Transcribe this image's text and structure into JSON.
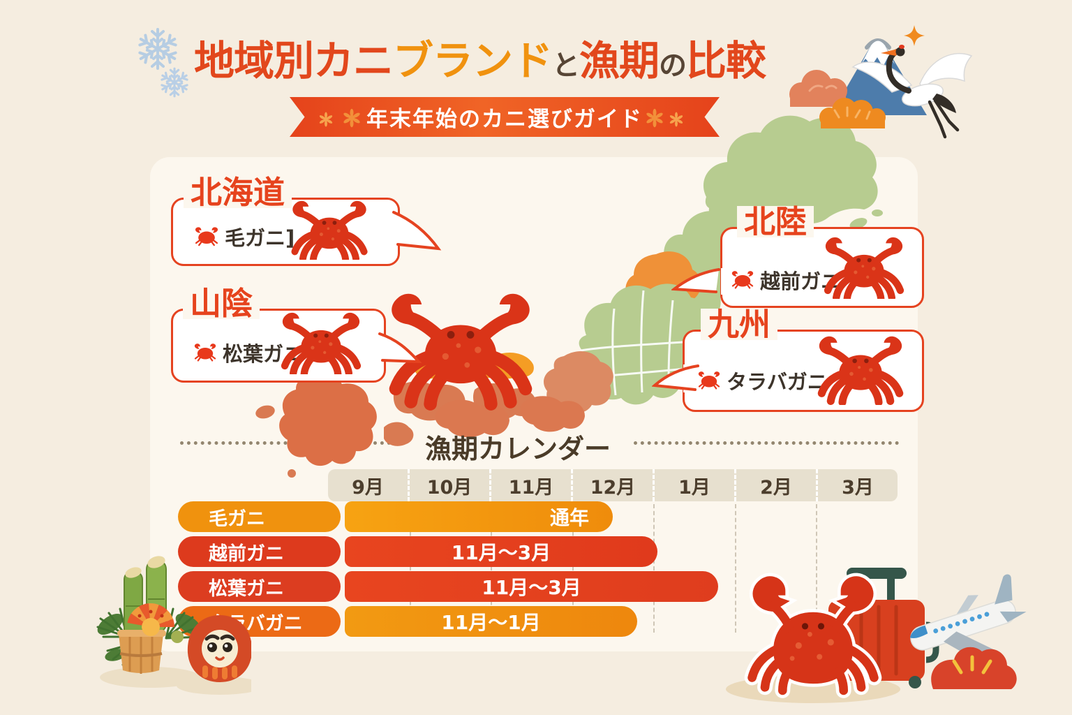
{
  "header": {
    "title_segments": [
      {
        "text": "地域別カニ",
        "color": "#e2471c",
        "size_class": "seg-lg"
      },
      {
        "text": "ブランド",
        "color": "#f0920f",
        "size_class": "seg-lg"
      },
      {
        "text": "と",
        "color": "#574535",
        "size_class": "seg-sm"
      },
      {
        "text": "漁期",
        "color": "#e2471c",
        "size_class": "seg-lg"
      },
      {
        "text": "の",
        "color": "#574535",
        "size_class": "seg-sm"
      },
      {
        "text": "比較",
        "color": "#e2471c",
        "size_class": "seg-lg"
      }
    ],
    "banner": {
      "label": "年末年始のカニ選びガイド"
    }
  },
  "regions": [
    {
      "name": "北海道",
      "crab": "毛ガニ]"
    },
    {
      "name": "北陸",
      "crab": "越前ガニ"
    },
    {
      "name": "山陰",
      "crab": "松葉ガニ"
    },
    {
      "name": "九州",
      "crab": "タラバガニ"
    }
  ],
  "calendar": {
    "title": "漁期カレンダー",
    "months": [
      "9月",
      "10月",
      "11月",
      "12月",
      "1月",
      "2月",
      "3月"
    ],
    "rows": [
      {
        "label": "毛ガニ",
        "period": "通年",
        "start_col": 0.2,
        "end_col": 3.5,
        "label_color": "#f0920e",
        "bar_color": "linear-gradient(90deg,#f7a312,#ef8c0b)",
        "align": "bar-right"
      },
      {
        "label": "越前ガニ",
        "period": "11月〜3月",
        "start_col": 0.2,
        "end_col": 4.05,
        "label_color": "#dd3a1d",
        "bar_color": "linear-gradient(90deg,#e8451f,#e03a1c)",
        "align": "bar-center"
      },
      {
        "label": "松葉ガニ",
        "period": "11月〜3月",
        "start_col": 0.2,
        "end_col": 4.8,
        "label_color": "#dc3d20",
        "bar_color": "linear-gradient(90deg,#e8451f,#df3d1e)",
        "align": "bar-center"
      },
      {
        "label": "タラバガニ",
        "period": "11月〜1月",
        "start_col": 0.2,
        "end_col": 3.8,
        "label_color": "#ec6a15",
        "bar_color": "linear-gradient(90deg,#f29a12,#ee870d)",
        "align": "bar-center"
      }
    ]
  },
  "chart_data": {
    "type": "bar",
    "orientation": "horizontal-gantt",
    "title": "漁期カレンダー",
    "x_ticks": [
      "9月",
      "10月",
      "11月",
      "12月",
      "1月",
      "2月",
      "3月"
    ],
    "categories": [
      "毛ガニ",
      "越前ガニ",
      "松葉ガニ",
      "タラバガニ"
    ],
    "period_labels": [
      "通年",
      "11月〜3月",
      "11月〜3月",
      "11月〜1月"
    ],
    "bar_spans_in_month_columns": [
      [
        0.2,
        3.5
      ],
      [
        0.2,
        4.05
      ],
      [
        0.2,
        4.8
      ],
      [
        0.2,
        3.8
      ]
    ],
    "legend": "none",
    "grid": "dashed vertical month separators"
  },
  "colors": {
    "background": "#f5ede0",
    "panel": "#fcf7ee",
    "accent_red": "#e54320",
    "accent_orange": "#f0920f",
    "map_green": "#b7cc90",
    "map_orange": "#f49d24",
    "map_terracotta": "#d97a52",
    "text_brown": "#4a3b28"
  },
  "icons": [
    "snowflake",
    "mount-fuji",
    "crane",
    "sparkle",
    "flower",
    "crab",
    "kadomatsu",
    "daruma",
    "suitcase",
    "airplane",
    "plum-blossom"
  ]
}
